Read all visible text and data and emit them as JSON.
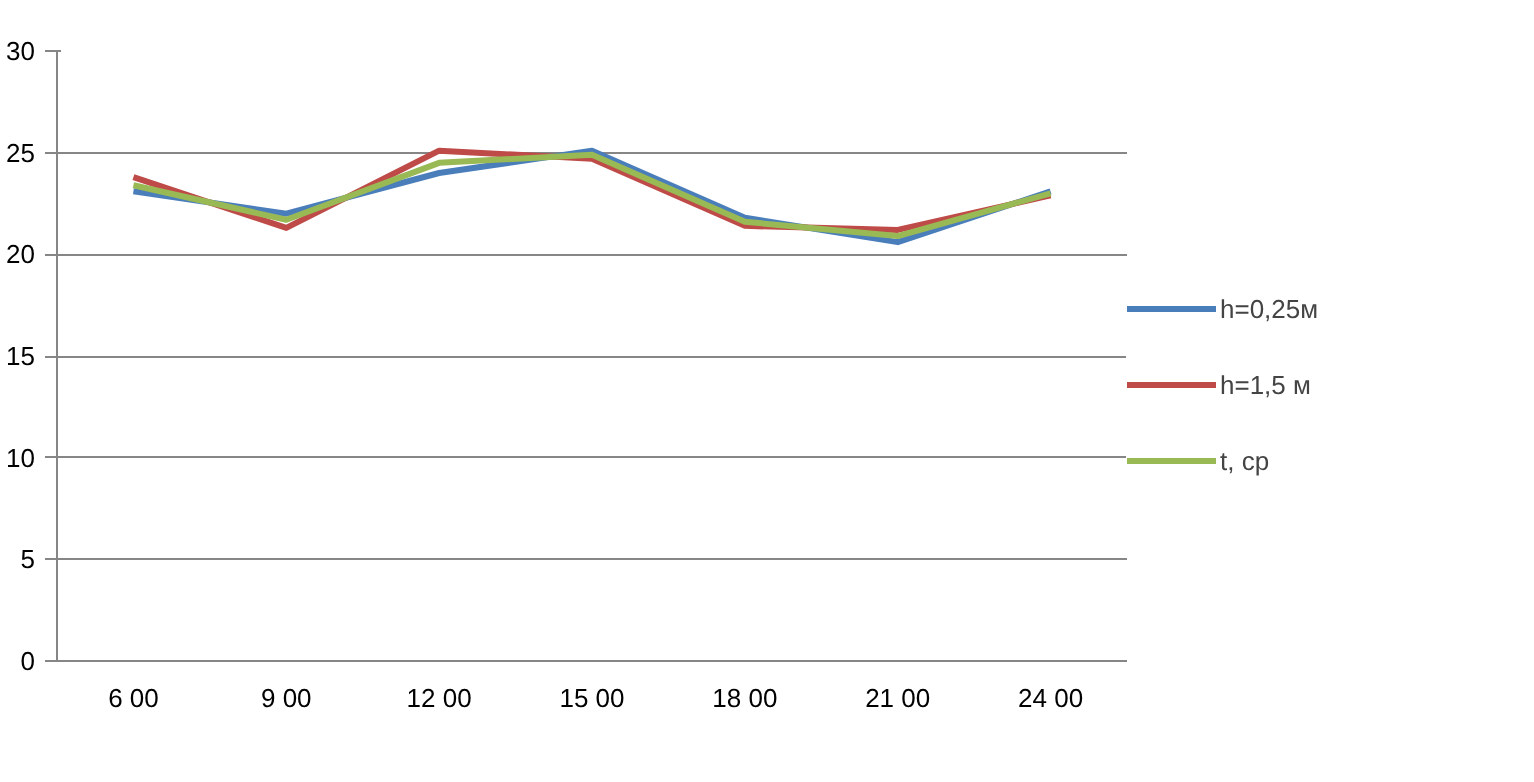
{
  "chart_data": {
    "type": "line",
    "categories": [
      "6 00",
      "9 00",
      "12 00",
      "15 00",
      "18 00",
      "21 00",
      "24 00"
    ],
    "series": [
      {
        "name": "h=0,25м",
        "color": "#4a7ebb",
        "values": [
          23.1,
          22.0,
          24.0,
          25.1,
          21.8,
          20.6,
          23.1
        ]
      },
      {
        "name": "h=1,5 м",
        "color": "#be4b48",
        "values": [
          23.8,
          21.3,
          25.1,
          24.7,
          21.4,
          21.2,
          22.9
        ]
      },
      {
        "name": "t, ср",
        "color": "#98b954",
        "values": [
          23.4,
          21.7,
          24.5,
          24.9,
          21.6,
          20.9,
          23.0
        ]
      }
    ],
    "ylim": [
      0,
      30
    ],
    "yticks": [
      0,
      5,
      10,
      15,
      20,
      25,
      30
    ],
    "grid": "y",
    "legend": "right",
    "marker": "none",
    "line_style": "solid"
  }
}
